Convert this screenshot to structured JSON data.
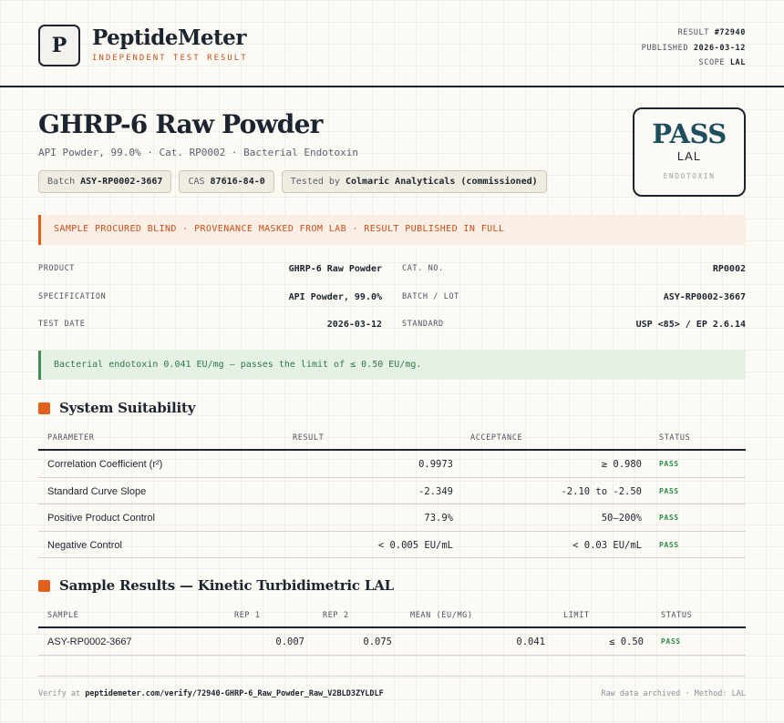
{
  "brand": {
    "logo_letter": "P",
    "name": "PeptideMeter",
    "tagline": "INDEPENDENT TEST RESULT"
  },
  "meta": {
    "result_label": "RESULT",
    "result_value": "#72940",
    "published_label": "PUBLISHED",
    "published_value": "2026-03-12",
    "scope_label": "SCOPE",
    "scope_value": "LAL"
  },
  "product": {
    "title": "GHRP-6 Raw Powder",
    "subtitle": "API Powder, 99.0% · Cat. RP0002 · Bacterial Endotoxin",
    "chips": [
      {
        "label": "Batch",
        "value": "ASY-RP0002-3667"
      },
      {
        "label": "CAS",
        "value": "87616-84-0"
      },
      {
        "label": "Tested by",
        "value": "Colmaric Analyticals (commissioned)"
      }
    ]
  },
  "badge": {
    "verdict": "PASS",
    "scope": "LAL",
    "caption": "ENDOTOXIN"
  },
  "notice": "SAMPLE PROCURED BLIND · PROVENANCE MASKED FROM LAB · RESULT PUBLISHED IN FULL",
  "info": {
    "left": [
      {
        "label": "PRODUCT",
        "value": "GHRP-6 Raw Powder"
      },
      {
        "label": "SPECIFICATION",
        "value": "API Powder, 99.0%"
      },
      {
        "label": "TEST DATE",
        "value": "2026-03-12"
      }
    ],
    "right": [
      {
        "label": "CAT. NO.",
        "value": "RP0002"
      },
      {
        "label": "BATCH / LOT",
        "value": "ASY-RP0002-3667"
      },
      {
        "label": "STANDARD",
        "value": "USP <85> / EP 2.6.14"
      }
    ]
  },
  "result_note": "Bacterial endotoxin 0.041 EU/mg — passes the limit of ≤ 0.50 EU/mg.",
  "system_suitability": {
    "title": "System Suitability",
    "headers": {
      "parameter": "PARAMETER",
      "result": "RESULT",
      "acceptance": "ACCEPTANCE",
      "status": "STATUS"
    },
    "rows": [
      {
        "parameter": "Correlation Coefficient (r²)",
        "result": "0.9973",
        "acceptance": "≥ 0.980",
        "status": "PASS"
      },
      {
        "parameter": "Standard Curve Slope",
        "result": "-2.349",
        "acceptance": "-2.10 to -2.50",
        "status": "PASS"
      },
      {
        "parameter": "Positive Product Control",
        "result": "73.9%",
        "acceptance": "50–200%",
        "status": "PASS"
      },
      {
        "parameter": "Negative Control",
        "result": "< 0.005 EU/mL",
        "acceptance": "< 0.03 EU/mL",
        "status": "PASS"
      }
    ]
  },
  "sample_results": {
    "title": "Sample Results — Kinetic Turbidimetric LAL",
    "headers": {
      "sample": "SAMPLE",
      "rep1": "REP 1",
      "rep2": "REP 2",
      "mean": "MEAN (EU/MG)",
      "limit": "LIMIT",
      "status": "STATUS"
    },
    "rows": [
      {
        "sample": "ASY-RP0002-3667",
        "rep1": "0.007",
        "rep2": "0.075",
        "mean": "0.041",
        "limit": "≤ 0.50",
        "status": "PASS"
      }
    ]
  },
  "footer": {
    "verify_prefix": "Verify at",
    "verify_url": "peptidemeter.com/verify/72940-GHRP-6_Raw_Powder_Raw_V2BLD3ZYLDLF",
    "right_text": "Raw data archived · Method: LAL"
  },
  "colors": {
    "accent": "#e0601e",
    "ink": "#1c2430",
    "pass_green": "#2d8a4a",
    "badge_teal": "#1e4d5e"
  }
}
